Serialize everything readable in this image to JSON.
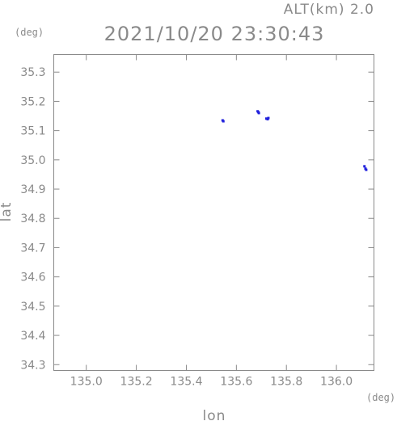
{
  "header": {
    "alt_label": "ALT(km) 2.0",
    "datetime": "2021/10/20 23:30:43",
    "lat_unit": "(deg)",
    "lon_unit": "(deg)"
  },
  "colors": {
    "axis": "#8a8a8a",
    "marker": "#2222dd"
  },
  "chart_data": {
    "type": "scatter",
    "title": "2021/10/20 23:30:43",
    "xlabel": "lon",
    "ylabel": "lat",
    "xlim": [
      134.87,
      136.15
    ],
    "ylim": [
      34.28,
      35.36
    ],
    "x_ticks": [
      135.0,
      135.2,
      135.4,
      135.6,
      135.8,
      136.0
    ],
    "x_tick_labels": [
      "135.0",
      "135.2",
      "135.4",
      "135.6",
      "135.8",
      "136.0"
    ],
    "y_ticks": [
      34.3,
      34.4,
      34.5,
      34.6,
      34.7,
      34.8,
      34.9,
      35.0,
      35.1,
      35.2,
      35.3
    ],
    "y_tick_labels": [
      "34.3",
      "34.4",
      "34.5",
      "34.6",
      "34.7",
      "34.8",
      "34.9",
      "35.0",
      "35.1",
      "35.2",
      "35.3"
    ],
    "grid": false,
    "series": [
      {
        "points": [
          {
            "x": 135.545,
            "y": 35.135
          },
          {
            "x": 135.548,
            "y": 35.132
          },
          {
            "x": 135.685,
            "y": 35.166
          },
          {
            "x": 135.69,
            "y": 35.16
          },
          {
            "x": 135.688,
            "y": 35.163
          },
          {
            "x": 135.72,
            "y": 35.141
          },
          {
            "x": 135.725,
            "y": 35.139
          },
          {
            "x": 135.728,
            "y": 35.143
          },
          {
            "x": 136.112,
            "y": 34.978
          },
          {
            "x": 136.116,
            "y": 34.97
          },
          {
            "x": 136.119,
            "y": 34.966
          }
        ]
      }
    ]
  }
}
